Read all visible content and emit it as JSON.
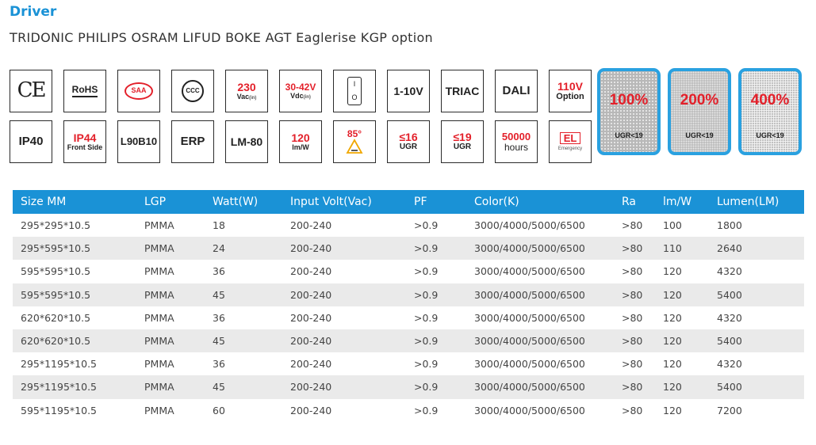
{
  "heading": "Driver",
  "subheading": "TRIDONIC PHILIPS OSRAM LIFUD BOKE AGT Eaglerise KGP option",
  "badges_row1": {
    "ce": "CE",
    "rohs": "RoHS",
    "saa": "SAA",
    "ccc": "CCC",
    "vac_value": "230",
    "vac_unit": "Vac",
    "vac_sub": "(in)",
    "vdc_value": "30-42V",
    "vdc_unit": "Vdc",
    "vdc_sub": "(in)",
    "switch_on": "I",
    "switch_off": "O",
    "dim_1_10v": "1-10V",
    "triac": "TRIAC",
    "dali": "DALI",
    "option_value": "110V",
    "option_label": "Option"
  },
  "badges_row2": {
    "ip40": "IP40",
    "ip44": "IP44",
    "ip44_sub": "Front Side",
    "l90b10": "L90B10",
    "erp": "ERP",
    "lm80": "LM-80",
    "efficacy_value": "120",
    "efficacy_unit": "lm/W",
    "temp_value": "85°",
    "ugr16_value": "≤16",
    "ugr16_label": "UGR",
    "ugr19_value": "≤19",
    "ugr19_label": "UGR",
    "hours_value": "50000",
    "hours_label": "hours",
    "el_label": "EL",
    "el_sub": "Emergency"
  },
  "ugr_panels": [
    {
      "percent": "100%",
      "label": "UGR<19"
    },
    {
      "percent": "200%",
      "label": "UGR<19"
    },
    {
      "percent": "400%",
      "label": "UGR<19"
    }
  ],
  "table": {
    "headers": [
      "Size MM",
      "LGP",
      "Watt(W)",
      "Input Volt(Vac)",
      "PF",
      "Color(K)",
      "Ra",
      "lm/W",
      "Lumen(LM)"
    ],
    "rows": [
      [
        "295*295*10.5",
        "PMMA",
        "18",
        "200-240",
        ">0.9",
        "3000/4000/5000/6500",
        ">80",
        "100",
        "1800"
      ],
      [
        "295*595*10.5",
        "PMMA",
        "24",
        "200-240",
        ">0.9",
        "3000/4000/5000/6500",
        ">80",
        "110",
        "2640"
      ],
      [
        "595*595*10.5",
        "PMMA",
        "36",
        "200-240",
        ">0.9",
        "3000/4000/5000/6500",
        ">80",
        "120",
        "4320"
      ],
      [
        "595*595*10.5",
        "PMMA",
        "45",
        "200-240",
        ">0.9",
        "3000/4000/5000/6500",
        ">80",
        "120",
        "5400"
      ],
      [
        "620*620*10.5",
        "PMMA",
        "36",
        "200-240",
        ">0.9",
        "3000/4000/5000/6500",
        ">80",
        "120",
        "4320"
      ],
      [
        "620*620*10.5",
        "PMMA",
        "45",
        "200-240",
        ">0.9",
        "3000/4000/5000/6500",
        ">80",
        "120",
        "5400"
      ],
      [
        "295*1195*10.5",
        "PMMA",
        "36",
        "200-240",
        ">0.9",
        "3000/4000/5000/6500",
        ">80",
        "120",
        "4320"
      ],
      [
        "295*1195*10.5",
        "PMMA",
        "45",
        "200-240",
        ">0.9",
        "3000/4000/5000/6500",
        ">80",
        "120",
        "5400"
      ],
      [
        "595*1195*10.5",
        "PMMA",
        "60",
        "200-240",
        ">0.9",
        "3000/4000/5000/6500",
        ">80",
        "120",
        "7200"
      ]
    ]
  },
  "colors": {
    "accent_blue": "#1a92d6",
    "accent_red": "#e3202a",
    "row_alt": "#eaeaea"
  }
}
